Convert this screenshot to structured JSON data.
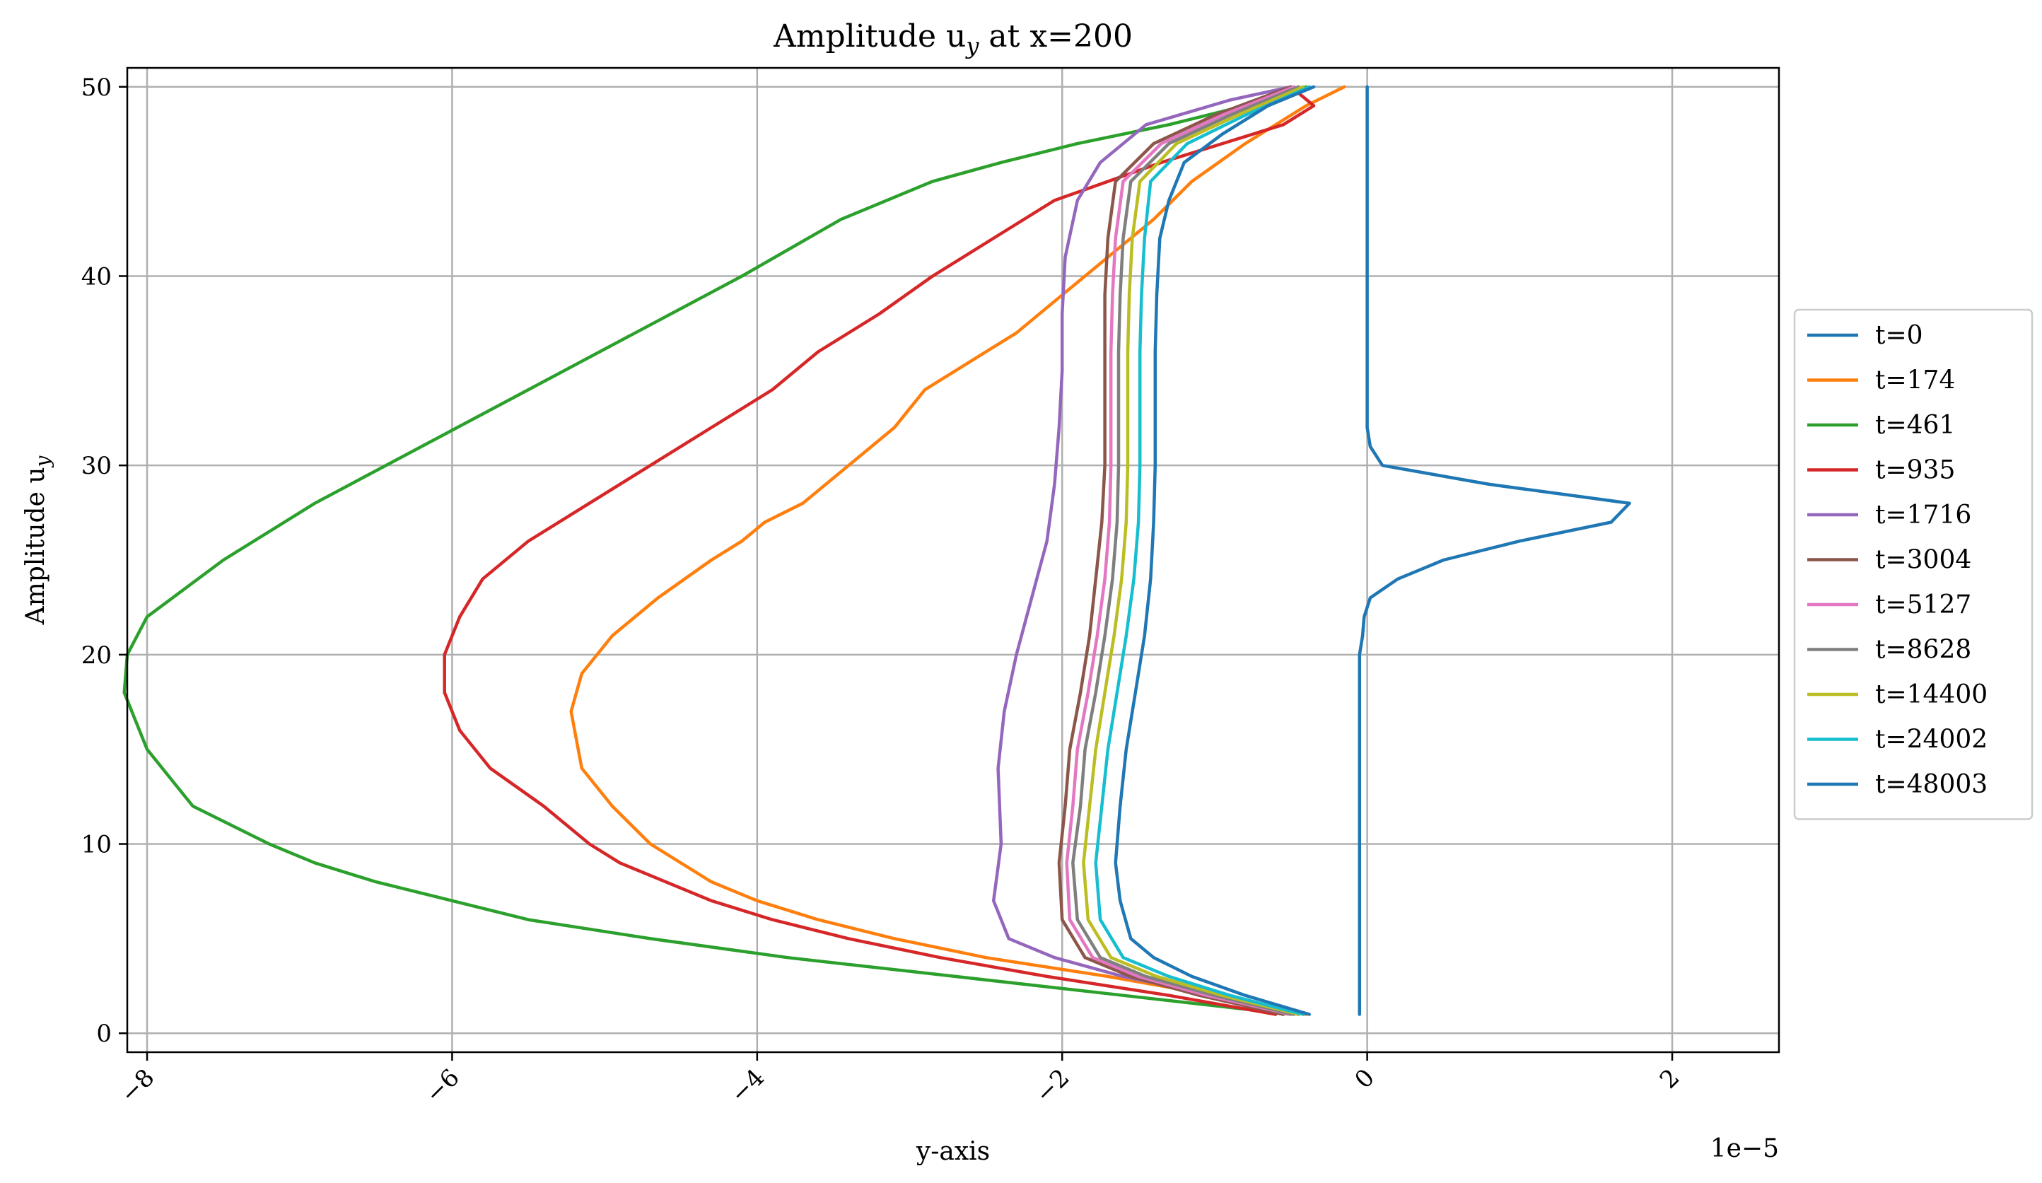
{
  "chart_data": {
    "type": "line",
    "title": "Amplitude u",
    "title_subscript": "y",
    "title_suffix": " at x=200",
    "xlabel": "y-axis",
    "ylabel": "Amplitude u",
    "ylabel_subscript": "y",
    "x_scale_note": "1e−5",
    "xlim": [
      -8.13,
      2.7
    ],
    "ylim": [
      -1,
      51
    ],
    "x_ticks": [
      -8,
      -6,
      -4,
      -2,
      0,
      2
    ],
    "x_tick_labels": [
      "−8",
      "−6",
      "−4",
      "−2",
      "0",
      "2"
    ],
    "y_ticks": [
      0,
      10,
      20,
      30,
      40,
      50
    ],
    "y_tick_labels": [
      "0",
      "10",
      "20",
      "30",
      "40",
      "50"
    ],
    "grid": true,
    "legend_position": "right",
    "series": [
      {
        "name": "t=0",
        "color": "#1f77b4",
        "points": [
          [
            -0.05,
            1
          ],
          [
            -0.05,
            5
          ],
          [
            -0.05,
            10
          ],
          [
            -0.05,
            15
          ],
          [
            -0.05,
            20
          ],
          [
            -0.03,
            21
          ],
          [
            -0.02,
            22
          ],
          [
            0.02,
            23
          ],
          [
            0.2,
            24
          ],
          [
            0.5,
            25
          ],
          [
            1.0,
            26
          ],
          [
            1.6,
            27
          ],
          [
            1.72,
            28
          ],
          [
            0.8,
            29
          ],
          [
            0.1,
            30
          ],
          [
            0.02,
            31
          ],
          [
            0,
            32
          ],
          [
            0,
            35
          ],
          [
            0,
            40
          ],
          [
            0,
            45
          ],
          [
            0,
            50
          ]
        ]
      },
      {
        "name": "t=174",
        "color": "#ff7f0e",
        "points": [
          [
            -0.4,
            1
          ],
          [
            -1.0,
            2
          ],
          [
            -1.7,
            3
          ],
          [
            -2.5,
            4
          ],
          [
            -3.1,
            5
          ],
          [
            -3.6,
            6
          ],
          [
            -4.0,
            7
          ],
          [
            -4.3,
            8
          ],
          [
            -4.7,
            10
          ],
          [
            -4.95,
            12
          ],
          [
            -5.15,
            14
          ],
          [
            -5.22,
            17
          ],
          [
            -5.15,
            19
          ],
          [
            -4.95,
            21
          ],
          [
            -4.65,
            23
          ],
          [
            -4.3,
            25
          ],
          [
            -4.1,
            26
          ],
          [
            -3.95,
            27
          ],
          [
            -3.7,
            28
          ],
          [
            -3.4,
            30
          ],
          [
            -3.1,
            32
          ],
          [
            -2.9,
            34
          ],
          [
            -2.5,
            36
          ],
          [
            -2.3,
            37
          ],
          [
            -2.0,
            39
          ],
          [
            -1.7,
            41
          ],
          [
            -1.4,
            43
          ],
          [
            -1.15,
            45
          ],
          [
            -0.8,
            47
          ],
          [
            -0.4,
            49
          ],
          [
            -0.15,
            50
          ]
        ]
      },
      {
        "name": "t=461",
        "color": "#2ca02c",
        "points": [
          [
            -0.5,
            1
          ],
          [
            -1.6,
            2
          ],
          [
            -2.7,
            3
          ],
          [
            -3.8,
            4
          ],
          [
            -4.7,
            5
          ],
          [
            -5.5,
            6
          ],
          [
            -6.0,
            7
          ],
          [
            -6.5,
            8
          ],
          [
            -6.9,
            9
          ],
          [
            -7.2,
            10
          ],
          [
            -7.7,
            12
          ],
          [
            -8.0,
            15
          ],
          [
            -8.15,
            18
          ],
          [
            -8.13,
            20
          ],
          [
            -8.0,
            22
          ],
          [
            -7.5,
            25
          ],
          [
            -6.9,
            28
          ],
          [
            -6.2,
            31
          ],
          [
            -5.5,
            34
          ],
          [
            -4.8,
            37
          ],
          [
            -4.1,
            40
          ],
          [
            -3.45,
            43
          ],
          [
            -2.85,
            45
          ],
          [
            -2.4,
            46
          ],
          [
            -1.9,
            47
          ],
          [
            -1.3,
            48
          ],
          [
            -0.8,
            49
          ],
          [
            -0.4,
            50
          ]
        ]
      },
      {
        "name": "t=935",
        "color": "#d62728",
        "points": [
          [
            -0.6,
            1
          ],
          [
            -1.3,
            2
          ],
          [
            -2.1,
            3
          ],
          [
            -2.8,
            4
          ],
          [
            -3.4,
            5
          ],
          [
            -3.9,
            6
          ],
          [
            -4.3,
            7
          ],
          [
            -4.6,
            8
          ],
          [
            -4.9,
            9
          ],
          [
            -5.1,
            10
          ],
          [
            -5.4,
            12
          ],
          [
            -5.75,
            14
          ],
          [
            -5.95,
            16
          ],
          [
            -6.05,
            18
          ],
          [
            -6.05,
            20
          ],
          [
            -5.95,
            22
          ],
          [
            -5.8,
            24
          ],
          [
            -5.5,
            26
          ],
          [
            -5.1,
            28
          ],
          [
            -4.7,
            30
          ],
          [
            -4.3,
            32
          ],
          [
            -3.9,
            34
          ],
          [
            -3.6,
            36
          ],
          [
            -3.2,
            38
          ],
          [
            -2.85,
            40
          ],
          [
            -2.45,
            42
          ],
          [
            -2.05,
            44
          ],
          [
            -1.7,
            45
          ],
          [
            -1.35,
            46
          ],
          [
            -0.95,
            47
          ],
          [
            -0.55,
            48
          ],
          [
            -0.35,
            49
          ],
          [
            -0.5,
            50
          ]
        ]
      },
      {
        "name": "t=1716",
        "color": "#9467bd",
        "points": [
          [
            -0.45,
            1
          ],
          [
            -1.0,
            2
          ],
          [
            -1.6,
            3
          ],
          [
            -2.05,
            4
          ],
          [
            -2.35,
            5
          ],
          [
            -2.45,
            7
          ],
          [
            -2.4,
            10
          ],
          [
            -2.42,
            14
          ],
          [
            -2.38,
            17
          ],
          [
            -2.3,
            20
          ],
          [
            -2.2,
            23
          ],
          [
            -2.1,
            26
          ],
          [
            -2.05,
            29
          ],
          [
            -2.02,
            32
          ],
          [
            -2.0,
            35
          ],
          [
            -2.0,
            38
          ],
          [
            -1.98,
            41
          ],
          [
            -1.9,
            44
          ],
          [
            -1.75,
            46
          ],
          [
            -1.45,
            48
          ],
          [
            -0.9,
            49.3
          ],
          [
            -0.5,
            50
          ]
        ]
      },
      {
        "name": "t=3004",
        "color": "#8c564b",
        "points": [
          [
            -0.55,
            1
          ],
          [
            -1.1,
            2
          ],
          [
            -1.55,
            3
          ],
          [
            -1.85,
            4
          ],
          [
            -2.0,
            6
          ],
          [
            -2.02,
            9
          ],
          [
            -1.98,
            12
          ],
          [
            -1.95,
            15
          ],
          [
            -1.88,
            18
          ],
          [
            -1.82,
            21
          ],
          [
            -1.78,
            24
          ],
          [
            -1.74,
            27
          ],
          [
            -1.72,
            30
          ],
          [
            -1.72,
            33
          ],
          [
            -1.72,
            36
          ],
          [
            -1.72,
            39
          ],
          [
            -1.7,
            42
          ],
          [
            -1.65,
            45
          ],
          [
            -1.4,
            47
          ],
          [
            -1.0,
            48.5
          ],
          [
            -0.5,
            50
          ]
        ]
      },
      {
        "name": "t=5127",
        "color": "#e377c2",
        "points": [
          [
            -0.5,
            1
          ],
          [
            -1.05,
            2
          ],
          [
            -1.5,
            3
          ],
          [
            -1.8,
            4
          ],
          [
            -1.95,
            6
          ],
          [
            -1.97,
            9
          ],
          [
            -1.93,
            12
          ],
          [
            -1.9,
            15
          ],
          [
            -1.83,
            18
          ],
          [
            -1.77,
            21
          ],
          [
            -1.72,
            24
          ],
          [
            -1.69,
            27
          ],
          [
            -1.68,
            30
          ],
          [
            -1.68,
            33
          ],
          [
            -1.68,
            36
          ],
          [
            -1.67,
            39
          ],
          [
            -1.65,
            42
          ],
          [
            -1.6,
            45
          ],
          [
            -1.35,
            47
          ],
          [
            -0.95,
            48.5
          ],
          [
            -0.48,
            50
          ]
        ]
      },
      {
        "name": "t=8628",
        "color": "#7f7f7f",
        "points": [
          [
            -0.48,
            1
          ],
          [
            -1.0,
            2
          ],
          [
            -1.45,
            3
          ],
          [
            -1.75,
            4
          ],
          [
            -1.9,
            6
          ],
          [
            -1.93,
            9
          ],
          [
            -1.88,
            12
          ],
          [
            -1.85,
            15
          ],
          [
            -1.78,
            18
          ],
          [
            -1.72,
            21
          ],
          [
            -1.67,
            24
          ],
          [
            -1.64,
            27
          ],
          [
            -1.63,
            30
          ],
          [
            -1.63,
            33
          ],
          [
            -1.63,
            36
          ],
          [
            -1.62,
            39
          ],
          [
            -1.6,
            42
          ],
          [
            -1.55,
            45
          ],
          [
            -1.3,
            47
          ],
          [
            -0.9,
            48.5
          ],
          [
            -0.45,
            50
          ]
        ]
      },
      {
        "name": "t=14400",
        "color": "#bcbd22",
        "points": [
          [
            -0.45,
            1
          ],
          [
            -0.95,
            2
          ],
          [
            -1.38,
            3
          ],
          [
            -1.68,
            4
          ],
          [
            -1.83,
            6
          ],
          [
            -1.86,
            9
          ],
          [
            -1.82,
            12
          ],
          [
            -1.78,
            15
          ],
          [
            -1.72,
            18
          ],
          [
            -1.66,
            21
          ],
          [
            -1.61,
            24
          ],
          [
            -1.58,
            27
          ],
          [
            -1.57,
            30
          ],
          [
            -1.57,
            33
          ],
          [
            -1.57,
            36
          ],
          [
            -1.56,
            39
          ],
          [
            -1.54,
            42
          ],
          [
            -1.49,
            45
          ],
          [
            -1.25,
            47
          ],
          [
            -0.85,
            48.5
          ],
          [
            -0.42,
            50
          ]
        ]
      },
      {
        "name": "t=24002",
        "color": "#17becf",
        "points": [
          [
            -0.42,
            1
          ],
          [
            -0.9,
            2
          ],
          [
            -1.3,
            3
          ],
          [
            -1.6,
            4
          ],
          [
            -1.75,
            6
          ],
          [
            -1.78,
            9
          ],
          [
            -1.74,
            12
          ],
          [
            -1.7,
            15
          ],
          [
            -1.64,
            18
          ],
          [
            -1.58,
            21
          ],
          [
            -1.53,
            24
          ],
          [
            -1.5,
            27
          ],
          [
            -1.49,
            30
          ],
          [
            -1.49,
            33
          ],
          [
            -1.49,
            36
          ],
          [
            -1.48,
            39
          ],
          [
            -1.46,
            42
          ],
          [
            -1.42,
            45
          ],
          [
            -1.18,
            47
          ],
          [
            -0.8,
            48.5
          ],
          [
            -0.38,
            50
          ]
        ]
      },
      {
        "name": "t=48003",
        "color": "#1f77b4",
        "points": [
          [
            -0.38,
            1
          ],
          [
            -0.8,
            2
          ],
          [
            -1.15,
            3
          ],
          [
            -1.4,
            4
          ],
          [
            -1.55,
            5
          ],
          [
            -1.62,
            7
          ],
          [
            -1.65,
            9
          ],
          [
            -1.62,
            12
          ],
          [
            -1.58,
            15
          ],
          [
            -1.52,
            18
          ],
          [
            -1.46,
            21
          ],
          [
            -1.42,
            24
          ],
          [
            -1.4,
            27
          ],
          [
            -1.39,
            30
          ],
          [
            -1.39,
            33
          ],
          [
            -1.39,
            36
          ],
          [
            -1.38,
            39
          ],
          [
            -1.36,
            42
          ],
          [
            -1.3,
            44
          ],
          [
            -1.2,
            46
          ],
          [
            -0.95,
            47.5
          ],
          [
            -0.65,
            49
          ],
          [
            -0.35,
            50
          ]
        ]
      }
    ]
  }
}
